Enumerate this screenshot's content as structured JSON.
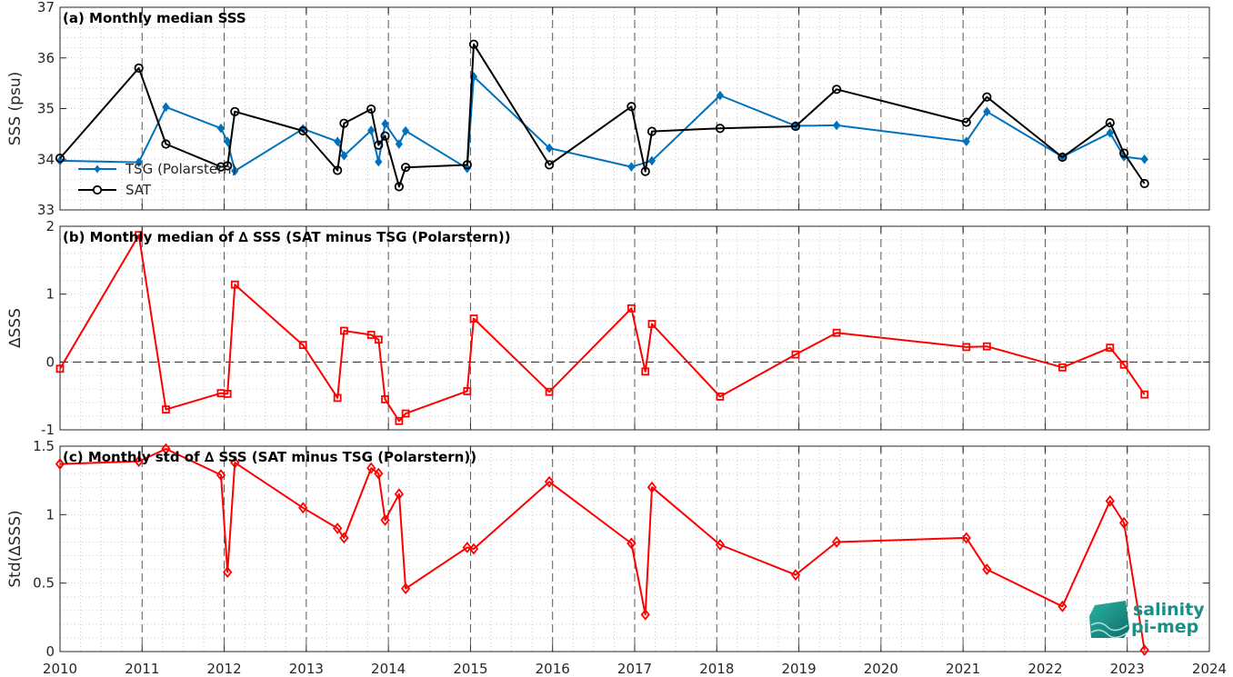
{
  "chart_data": [
    {
      "type": "line",
      "title": "(a) Monthly median SSS",
      "ylabel": "SSS (psu)",
      "xlim": [
        2010,
        2024
      ],
      "ylim": [
        33,
        37
      ],
      "yticks": [
        33,
        34,
        35,
        36,
        37
      ],
      "xticks": [
        2010,
        2011,
        2012,
        2013,
        2014,
        2015,
        2016,
        2017,
        2018,
        2019,
        2020,
        2021,
        2022,
        2023,
        2024
      ],
      "grid": true,
      "legend": "bottom-left",
      "series": [
        {
          "name": "TSG (Polarstern)",
          "color": "#0072BD",
          "marker": "diamond-filled",
          "x": [
            2010.0,
            2010.96,
            2011.29,
            2011.96,
            2012.04,
            2012.13,
            2012.96,
            2013.38,
            2013.46,
            2013.79,
            2013.88,
            2013.96,
            2014.13,
            2014.21,
            2014.96,
            2015.04,
            2015.96,
            2016.96,
            2017.21,
            2018.04,
            2018.96,
            2019.46,
            2021.04,
            2021.29,
            2022.21,
            2022.79,
            2022.96,
            2023.21
          ],
          "y": [
            33.97,
            33.94,
            35.03,
            34.61,
            34.35,
            33.77,
            34.6,
            34.35,
            34.07,
            34.57,
            33.95,
            34.7,
            34.3,
            34.56,
            33.82,
            35.63,
            34.22,
            33.85,
            33.97,
            35.26,
            34.66,
            34.67,
            34.35,
            34.94,
            34.05,
            34.52,
            34.05,
            34.0
          ]
        },
        {
          "name": "SAT",
          "color": "#000000",
          "marker": "circle-open",
          "x": [
            2010.0,
            2010.96,
            2011.29,
            2011.96,
            2012.04,
            2012.13,
            2012.96,
            2013.38,
            2013.46,
            2013.79,
            2013.88,
            2013.96,
            2014.13,
            2014.21,
            2014.96,
            2015.04,
            2015.96,
            2016.96,
            2017.13,
            2017.21,
            2018.04,
            2018.96,
            2019.46,
            2021.04,
            2021.29,
            2022.21,
            2022.79,
            2022.96,
            2023.21
          ],
          "y": [
            34.02,
            35.8,
            34.3,
            33.85,
            33.87,
            34.94,
            34.56,
            33.78,
            34.71,
            34.99,
            34.28,
            34.46,
            33.46,
            33.84,
            33.89,
            36.27,
            33.89,
            35.04,
            33.76,
            34.55,
            34.61,
            34.65,
            35.38,
            34.73,
            35.23,
            34.04,
            34.72,
            34.12,
            33.52
          ]
        }
      ]
    },
    {
      "type": "line",
      "title": "(b) Monthly median of ∆ SSS (SAT minus TSG (Polarstern))",
      "ylabel": "∆SSS",
      "xlim": [
        2010,
        2024
      ],
      "ylim": [
        -1,
        2
      ],
      "yticks": [
        -1,
        0,
        1,
        2
      ],
      "xticks": [
        2010,
        2011,
        2012,
        2013,
        2014,
        2015,
        2016,
        2017,
        2018,
        2019,
        2020,
        2021,
        2022,
        2023,
        2024
      ],
      "grid": true,
      "zero_line": true,
      "series": [
        {
          "color": "#ff0000",
          "marker": "square-open",
          "x": [
            2010.0,
            2010.96,
            2011.29,
            2011.96,
            2012.04,
            2012.13,
            2012.96,
            2013.38,
            2013.46,
            2013.79,
            2013.88,
            2013.96,
            2014.13,
            2014.21,
            2014.96,
            2015.04,
            2015.96,
            2016.96,
            2017.13,
            2017.21,
            2018.04,
            2018.96,
            2019.46,
            2021.04,
            2021.29,
            2022.21,
            2022.79,
            2022.96,
            2023.21
          ],
          "y": [
            -0.1,
            1.87,
            -0.7,
            -0.46,
            -0.47,
            1.14,
            0.25,
            -0.53,
            0.46,
            0.4,
            0.33,
            -0.55,
            -0.87,
            -0.76,
            -0.43,
            0.64,
            -0.44,
            0.79,
            -0.14,
            0.56,
            -0.51,
            0.11,
            0.43,
            0.22,
            0.23,
            -0.08,
            0.21,
            -0.04,
            -0.48
          ]
        }
      ]
    },
    {
      "type": "line",
      "title": "(c) Monthly std of ∆ SSS (SAT minus TSG (Polarstern))",
      "ylabel": "Std(∆SSS)",
      "xlabel": "",
      "xlim": [
        2010,
        2024
      ],
      "ylim": [
        0,
        1.5
      ],
      "yticks": [
        0,
        0.5,
        1,
        1.5
      ],
      "xticks": [
        2010,
        2011,
        2012,
        2013,
        2014,
        2015,
        2016,
        2017,
        2018,
        2019,
        2020,
        2021,
        2022,
        2023,
        2024
      ],
      "grid": true,
      "series": [
        {
          "color": "#ff0000",
          "marker": "diamond-open",
          "x": [
            2010.0,
            2010.96,
            2011.29,
            2011.96,
            2012.04,
            2012.13,
            2012.96,
            2013.38,
            2013.46,
            2013.79,
            2013.88,
            2013.96,
            2014.13,
            2014.21,
            2014.96,
            2015.04,
            2015.96,
            2016.96,
            2017.13,
            2017.21,
            2018.04,
            2018.96,
            2019.46,
            2021.04,
            2021.29,
            2022.21,
            2022.79,
            2022.96,
            2023.21
          ],
          "y": [
            1.37,
            1.39,
            1.48,
            1.29,
            0.58,
            1.38,
            1.05,
            0.9,
            0.83,
            1.34,
            1.3,
            0.96,
            1.15,
            0.46,
            0.76,
            0.75,
            1.24,
            0.79,
            0.27,
            1.2,
            0.78,
            0.56,
            0.8,
            0.83,
            0.6,
            0.33,
            1.1,
            0.94,
            0.01
          ]
        }
      ]
    }
  ],
  "logo": {
    "line1": "salinity",
    "line2": "pi-mep"
  }
}
